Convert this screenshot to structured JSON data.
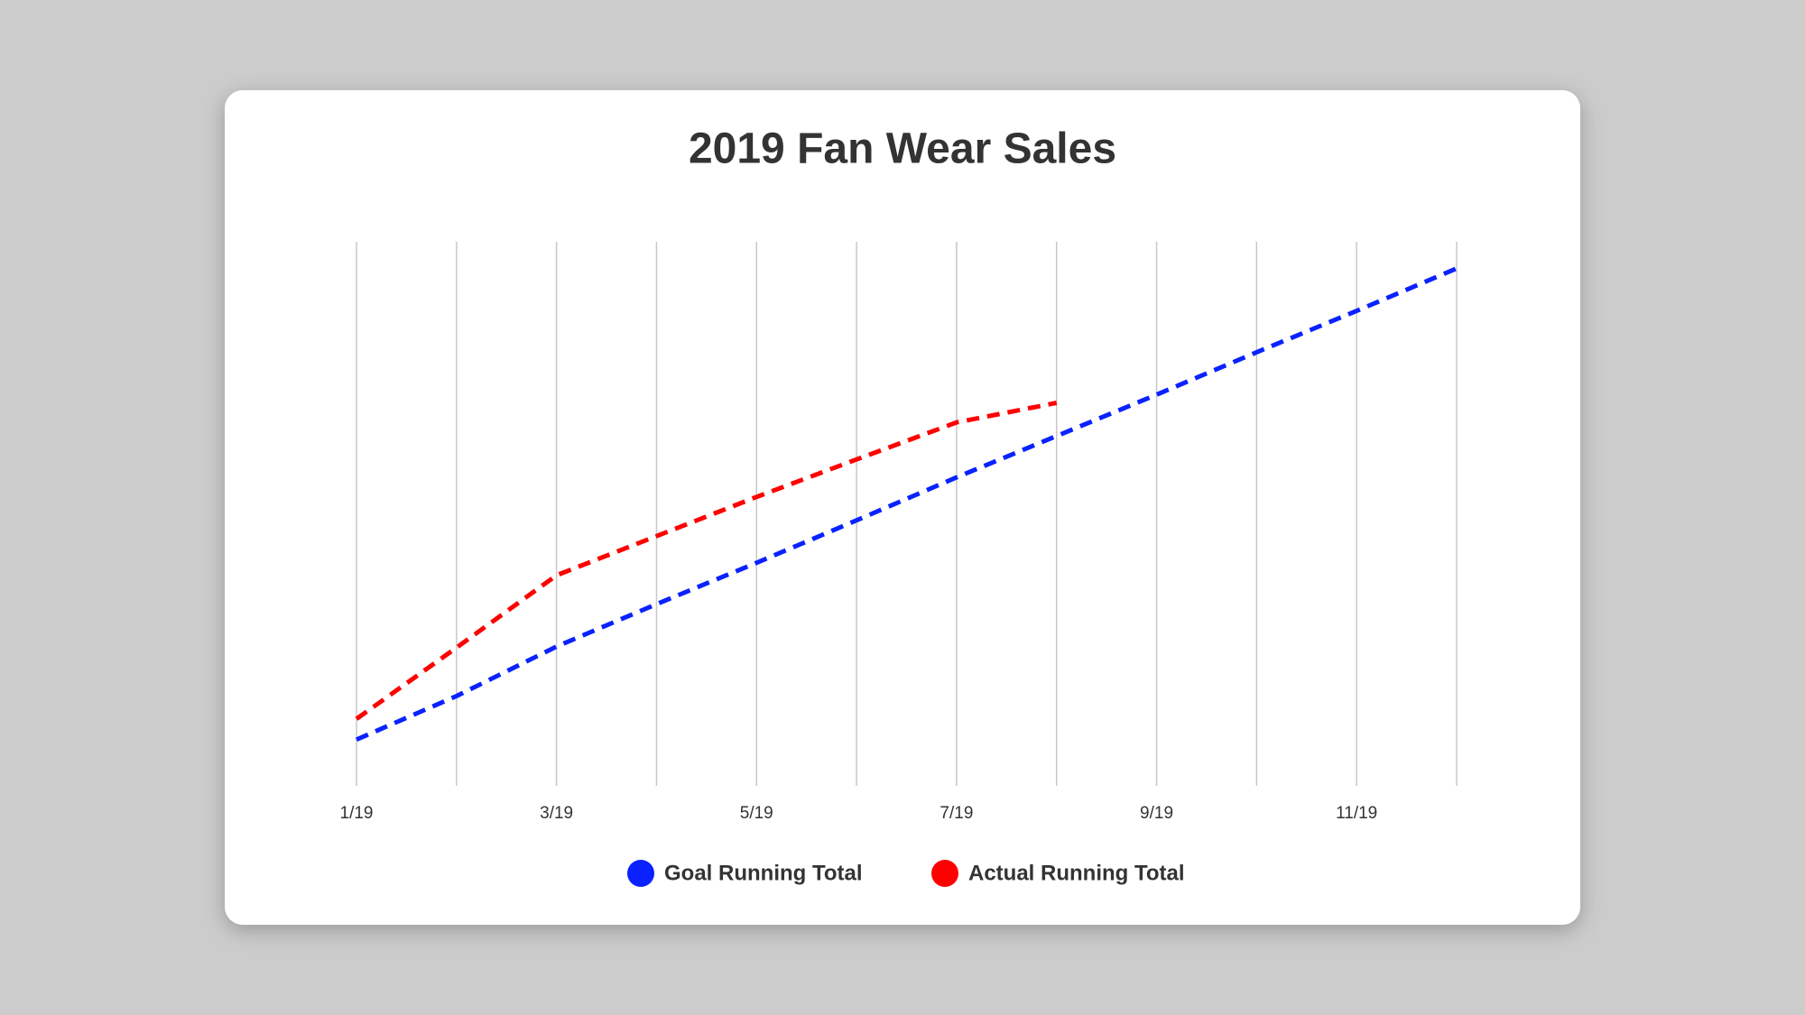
{
  "chart_data": {
    "type": "line",
    "title": "2019 Fan Wear Sales",
    "categories": [
      "1/19",
      null,
      "3/19",
      null,
      "5/19",
      null,
      "7/19",
      null,
      "9/19",
      null,
      "11/19",
      null
    ],
    "series": [
      {
        "name": "Goal Running Total",
        "color": "#0a22ff",
        "values": [
          8.5,
          16.5,
          25.6,
          33.4,
          41,
          48.8,
          56.7,
          64.3,
          71.9,
          79.7,
          87.3,
          95.1
        ]
      },
      {
        "name": "Actual Running Total",
        "color": "#ff0000",
        "values": [
          12.3,
          25.4,
          38.7,
          45.9,
          53.1,
          60,
          66.8,
          70.4,
          null,
          null,
          null,
          null
        ]
      }
    ],
    "ylim": [
      0,
      100
    ],
    "grid": true,
    "legend": "bottom"
  }
}
